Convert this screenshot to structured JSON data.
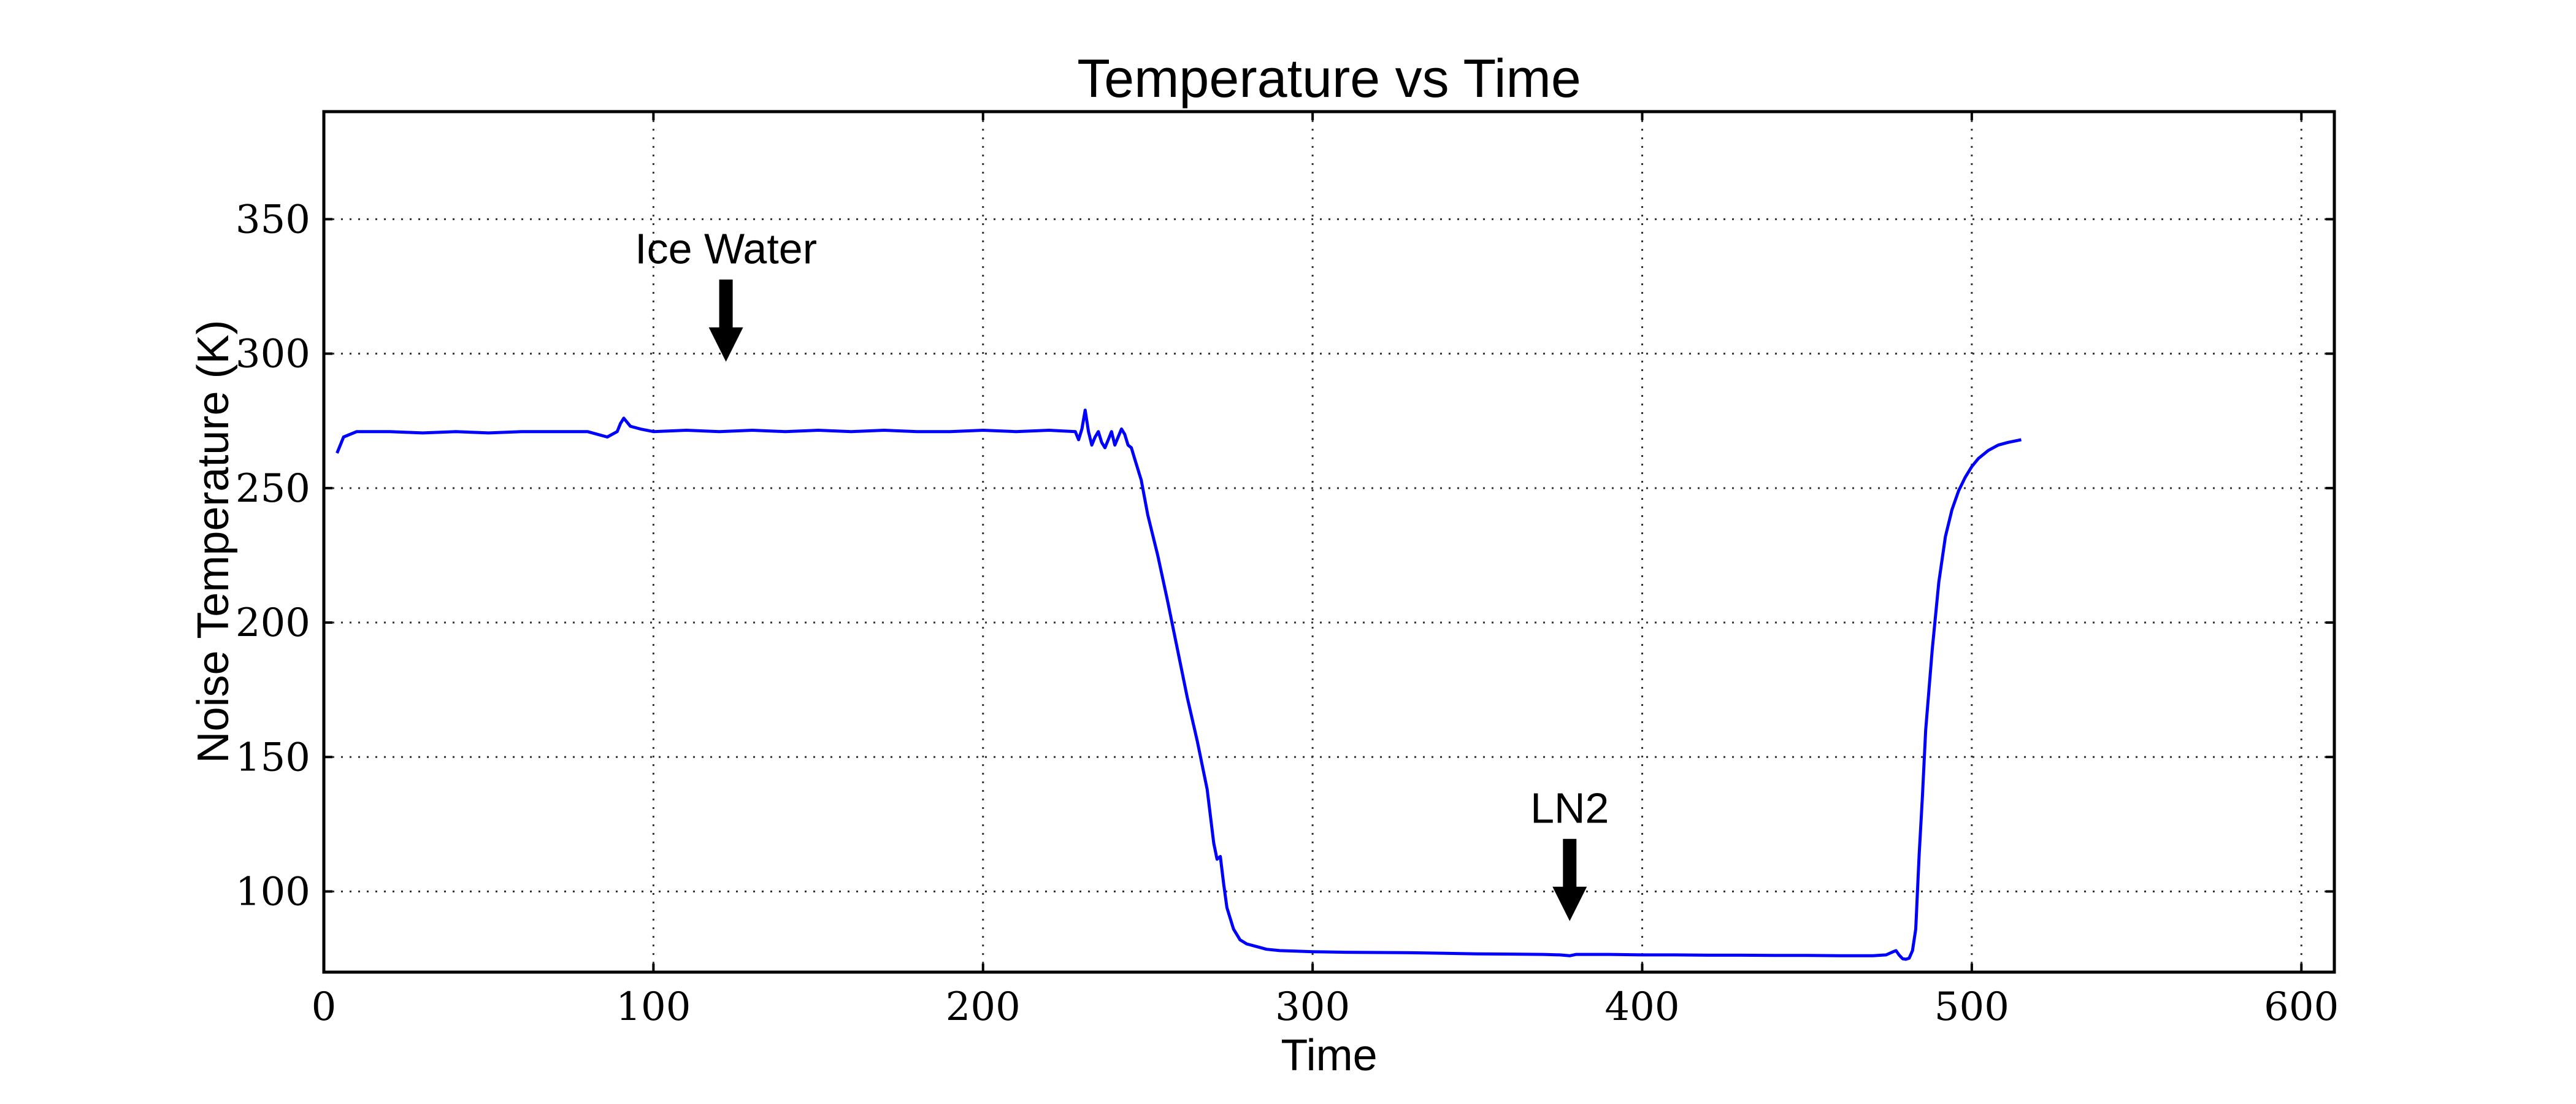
{
  "chart_data": {
    "type": "line",
    "title": "Temperature vs Time",
    "xlabel": "Time",
    "ylabel": "Noise Temperature (K)",
    "xlim": [
      0,
      610
    ],
    "ylim": [
      70,
      390
    ],
    "xticks": [
      0,
      100,
      200,
      300,
      400,
      500,
      600
    ],
    "yticks": [
      100,
      150,
      200,
      250,
      300,
      350
    ],
    "grid": true,
    "legend": "none",
    "colors": {
      "series": "#0000ff",
      "annotation": "#000000"
    },
    "series": [
      {
        "x": [
          4,
          6,
          10,
          20,
          30,
          40,
          50,
          60,
          70,
          80,
          86,
          89,
          90,
          91,
          93,
          96,
          100,
          110,
          120,
          130,
          140,
          150,
          160,
          170,
          180,
          190,
          200,
          210,
          220,
          228,
          229,
          230,
          231,
          232,
          233,
          234,
          235,
          236,
          237,
          238,
          239,
          240,
          241,
          242,
          243,
          244,
          245,
          246,
          248,
          250,
          253,
          256,
          259,
          262,
          265,
          268,
          270,
          271,
          272,
          273,
          274,
          276,
          278,
          280,
          283,
          286,
          290,
          295,
          300,
          310,
          320,
          330,
          340,
          350,
          360,
          370,
          375,
          378,
          380,
          390,
          400,
          410,
          420,
          430,
          440,
          450,
          460,
          470,
          474,
          476,
          477,
          478,
          479,
          480,
          481,
          482,
          483,
          484,
          485,
          486,
          488,
          490,
          492,
          494,
          496,
          498,
          500,
          502,
          505,
          508,
          511,
          515
        ],
        "y": [
          263,
          269,
          271,
          271,
          270.5,
          271,
          270.5,
          271,
          271,
          271,
          269,
          271,
          274,
          276,
          273,
          272,
          271,
          271.5,
          271,
          271.5,
          271,
          271.5,
          271,
          271.5,
          271,
          271,
          271.5,
          271,
          271.5,
          271,
          268,
          272,
          279,
          271,
          266,
          269,
          271,
          267,
          265,
          268,
          271,
          266,
          269,
          272,
          270,
          266,
          265,
          261,
          253,
          240,
          225,
          208,
          190,
          172,
          156,
          138,
          118,
          112,
          113,
          103,
          94,
          86,
          82,
          80.5,
          79.5,
          78.5,
          78,
          77.8,
          77.6,
          77.4,
          77.3,
          77.2,
          77,
          76.8,
          76.7,
          76.6,
          76.4,
          76.1,
          76.6,
          76.6,
          76.4,
          76.4,
          76.3,
          76.3,
          76.2,
          76.2,
          76.1,
          76.1,
          76.4,
          77.5,
          78,
          76.3,
          75,
          74.8,
          75.2,
          78,
          86,
          113,
          135,
          160,
          190,
          215,
          232,
          242,
          249,
          254,
          258,
          261,
          264,
          266,
          267,
          268
        ]
      }
    ],
    "annotations": [
      {
        "text": "Ice Water",
        "x": 122,
        "y": 297
      },
      {
        "text": "LN2",
        "x": 378,
        "y": 89
      }
    ]
  }
}
